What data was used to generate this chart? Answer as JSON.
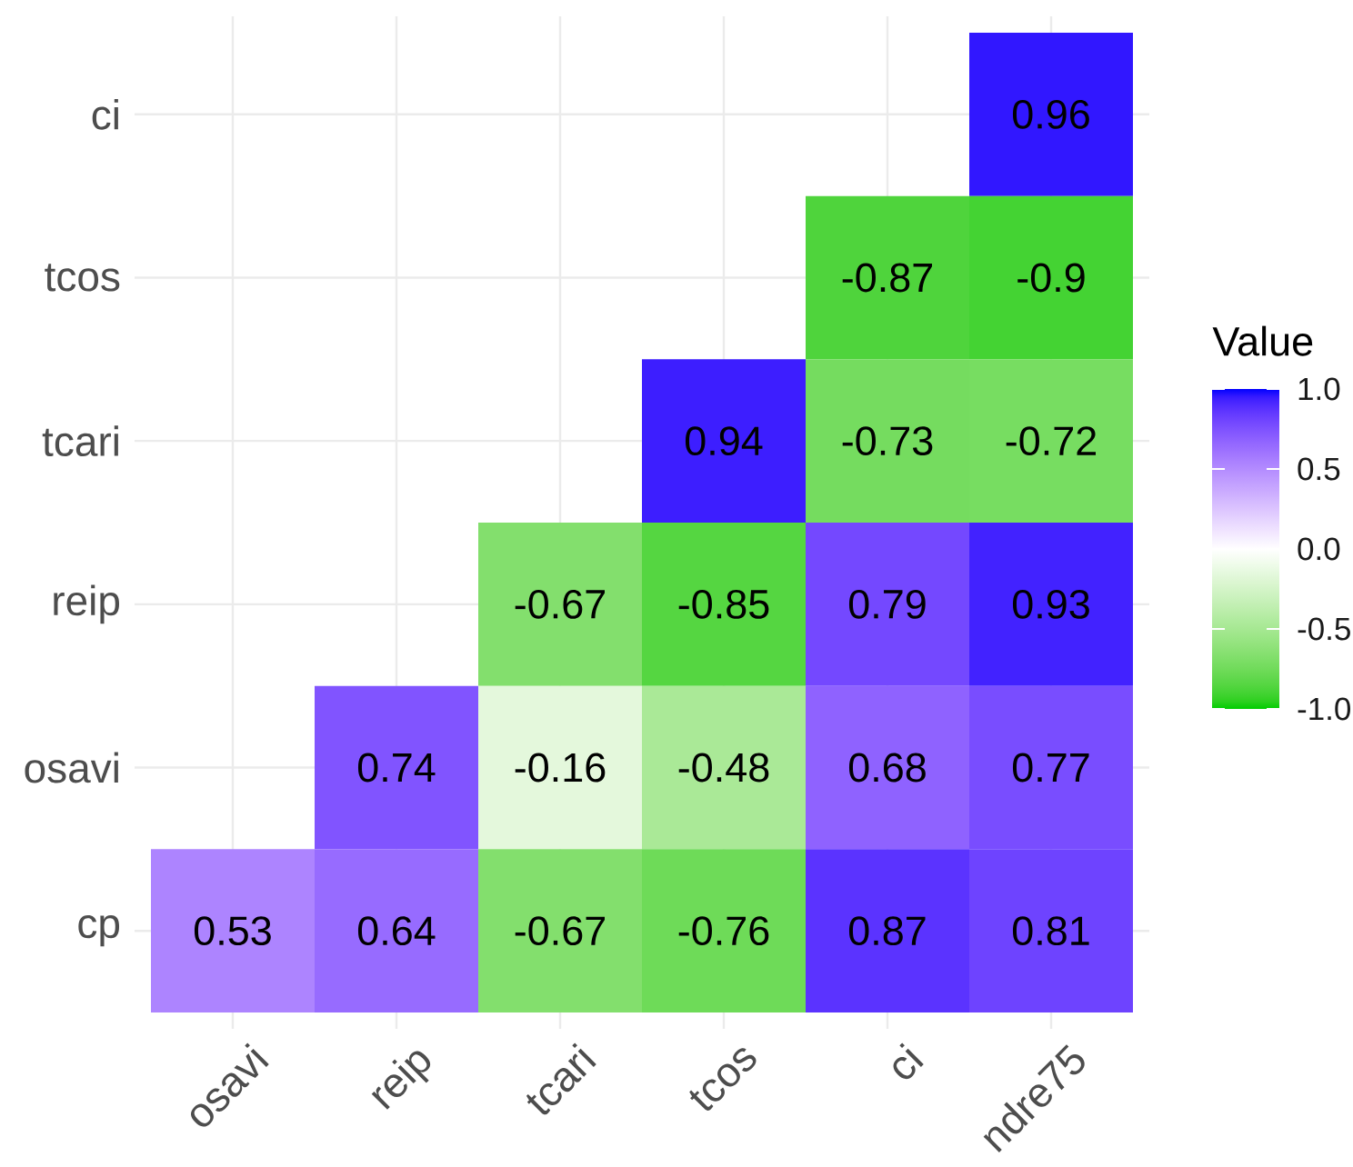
{
  "chart_data": {
    "type": "heatmap",
    "categories": [
      "osavi",
      "reip",
      "tcari",
      "tcos",
      "ci",
      "ndre75"
    ],
    "y_categories": [
      "ci",
      "tcos",
      "tcari",
      "reip",
      "osavi",
      "cp"
    ],
    "cells": [
      [
        null,
        null,
        null,
        null,
        null,
        0.96
      ],
      [
        null,
        null,
        null,
        null,
        -0.87,
        -0.9
      ],
      [
        null,
        null,
        null,
        0.94,
        -0.73,
        -0.72
      ],
      [
        null,
        null,
        -0.67,
        -0.85,
        0.79,
        0.93
      ],
      [
        null,
        0.74,
        -0.16,
        -0.48,
        0.68,
        0.77
      ],
      [
        0.53,
        0.64,
        -0.67,
        -0.76,
        0.87,
        0.81
      ]
    ],
    "clabel": "Value",
    "clim": [
      -1,
      1
    ],
    "cticks": [
      {
        "value": -1,
        "label": "-1.0"
      },
      {
        "value": -0.5,
        "label": "-0.5"
      },
      {
        "value": 0,
        "label": "0.0"
      },
      {
        "value": 0.5,
        "label": "0.5"
      },
      {
        "value": 1,
        "label": "1.0"
      }
    ],
    "data_labels": true,
    "grid": true
  }
}
